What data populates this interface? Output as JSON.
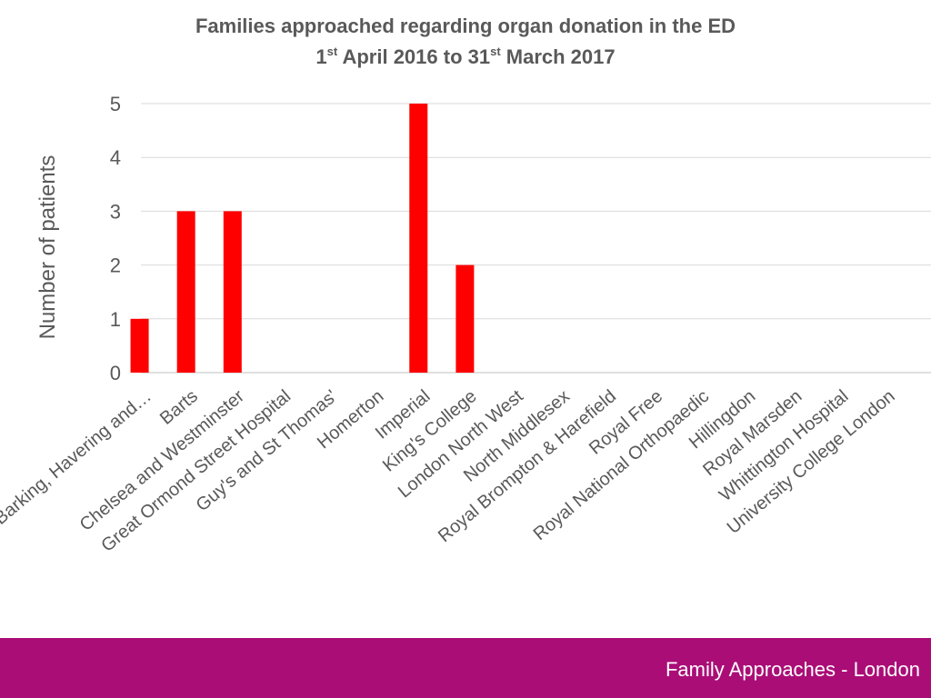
{
  "chart_data": {
    "type": "bar",
    "title_line1": "Families approached regarding organ donation in the ED",
    "title_line2": {
      "part1": "1",
      "sup1": "st",
      "part2": " April 2016 to 31",
      "sup2": "st",
      "part3": " March 2017"
    },
    "xlabel": "",
    "ylabel": "Number of patients",
    "ylim": [
      0,
      5
    ],
    "yticks": [
      0,
      1,
      2,
      3,
      4,
      5
    ],
    "grid": true,
    "bar_color": "#ff0000",
    "categories": [
      "Barking, Havering and…",
      "Barts",
      "Chelsea and Westminster",
      "Great Ormond Street Hospital",
      "Guy's and St Thomas'",
      "Homerton",
      "Imperial",
      "King's College",
      "London North West",
      "North Middlesex",
      "Royal Brompton & Harefield",
      "Royal Free",
      "Royal National Orthopaedic",
      "Hillingdon",
      "Royal Marsden",
      "Whittington Hospital",
      "University College London"
    ],
    "values": [
      1,
      3,
      3,
      0,
      0,
      0,
      5,
      2,
      0,
      0,
      0,
      0,
      0,
      0,
      0,
      0,
      0
    ]
  },
  "footer": {
    "text": "Family Approaches - London",
    "color": "#ab0d77"
  }
}
